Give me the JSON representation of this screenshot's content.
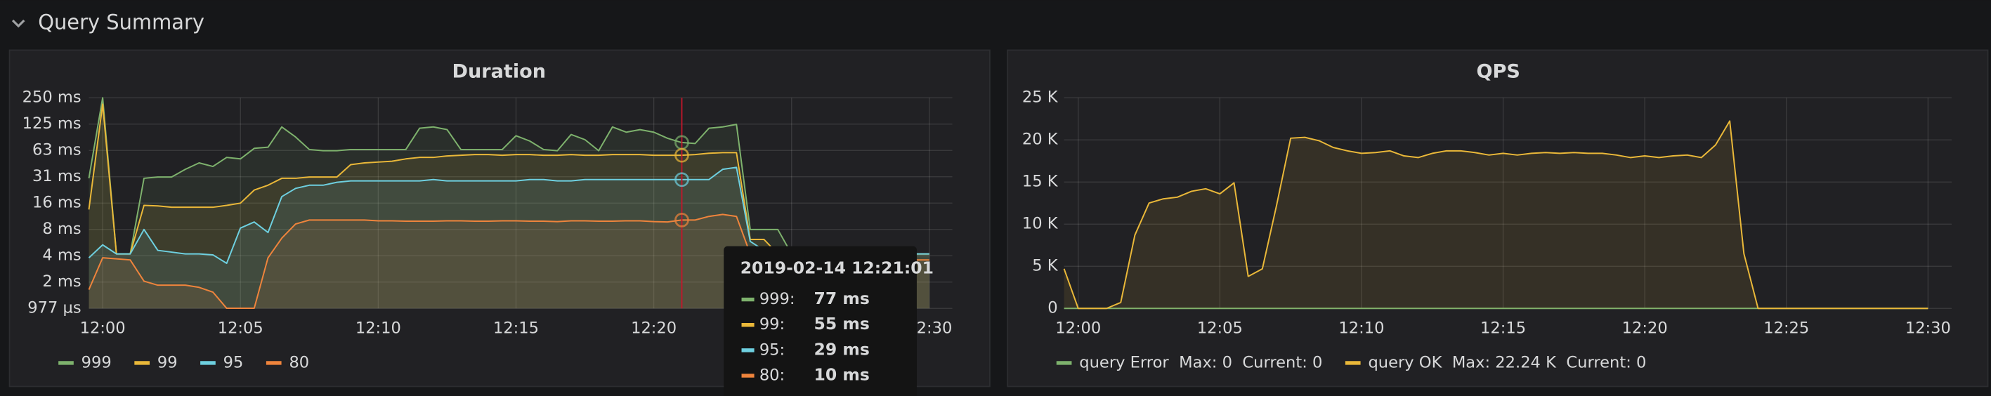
{
  "row": {
    "title": "Query Summary"
  },
  "chart_data": [
    {
      "type": "line",
      "title": "Duration",
      "log_scale": true,
      "grid": true,
      "fill": true,
      "x": [
        "11:59:30",
        "12:00:00",
        "12:00:30",
        "12:01:00",
        "12:01:30",
        "12:02:00",
        "12:02:30",
        "12:03:00",
        "12:03:30",
        "12:04:00",
        "12:04:30",
        "12:05:00",
        "12:05:30",
        "12:06:00",
        "12:06:30",
        "12:07:00",
        "12:07:30",
        "12:08:00",
        "12:08:30",
        "12:09:00",
        "12:09:30",
        "12:10:00",
        "12:10:30",
        "12:11:00",
        "12:11:30",
        "12:12:00",
        "12:12:30",
        "12:13:00",
        "12:13:30",
        "12:14:00",
        "12:14:30",
        "12:15:00",
        "12:15:30",
        "12:16:00",
        "12:16:30",
        "12:17:00",
        "12:17:30",
        "12:18:00",
        "12:18:30",
        "12:19:00",
        "12:19:30",
        "12:20:00",
        "12:20:30",
        "12:21:00",
        "12:21:30",
        "12:22:00",
        "12:22:30",
        "12:23:00",
        "12:23:30",
        "12:24:00",
        "12:24:30",
        "12:25:00",
        "12:25:30",
        "12:26:00",
        "12:26:30",
        "12:27:00",
        "12:27:30",
        "12:28:00",
        "12:28:30",
        "12:29:00",
        "12:29:30",
        "12:30:00"
      ],
      "xlim": [
        "11:59:30",
        "12:30:50"
      ],
      "xticks": [
        "12:00",
        "12:05",
        "12:10",
        "12:15",
        "12:20",
        "12:25",
        "12:30"
      ],
      "ylim": [
        0.9765625,
        250
      ],
      "yticks": [
        {
          "value": 250,
          "label": "250 ms"
        },
        {
          "value": 125,
          "label": "125 ms"
        },
        {
          "value": 62.5,
          "label": "63 ms"
        },
        {
          "value": 31.25,
          "label": "31 ms"
        },
        {
          "value": 15.625,
          "label": "16 ms"
        },
        {
          "value": 7.8125,
          "label": "8 ms"
        },
        {
          "value": 3.90625,
          "label": "4 ms"
        },
        {
          "value": 1.953125,
          "label": "2 ms"
        },
        {
          "value": 0.9765625,
          "label": "977 µs"
        }
      ],
      "series": [
        {
          "name": "999",
          "color": "#7eb26d",
          "values": [
            30,
            250,
            4.1,
            4.1,
            30,
            31,
            31,
            38,
            45,
            41,
            52,
            50,
            66,
            68,
            116,
            89,
            64,
            62,
            62,
            64,
            64,
            64,
            64,
            64,
            112,
            116,
            108,
            64,
            64,
            64,
            64,
            92,
            80,
            64,
            62,
            95,
            83,
            62,
            116,
            101,
            108,
            101,
            86,
            77,
            75,
            112,
            116,
            124,
            7.8,
            7.8,
            7.8,
            4.1,
            4.1,
            4.1,
            4.1,
            4.1,
            4.1,
            4.1,
            4.1,
            4.1,
            4.1,
            4.1
          ]
        },
        {
          "name": "99",
          "color": "#eab839",
          "values": [
            13.2,
            211,
            4.1,
            4.1,
            14.7,
            14.5,
            14,
            14,
            14,
            14,
            14.7,
            15.6,
            22,
            25,
            30,
            30,
            31,
            31,
            31,
            43,
            45,
            46,
            47,
            50,
            52,
            52,
            54,
            55,
            56,
            56,
            55,
            56,
            56,
            55,
            55,
            56,
            55,
            55,
            56,
            56,
            56,
            55,
            55,
            55,
            56,
            58,
            59,
            59,
            6,
            6,
            4.1,
            4.1,
            4.1,
            4.1,
            4.1,
            4.1,
            4.1,
            4.1,
            4.1,
            4.1,
            4.1,
            4.1
          ]
        },
        {
          "name": "95",
          "color": "#6ed0e0",
          "values": [
            3.7,
            5.2,
            4.1,
            4.1,
            7.8,
            4.5,
            4.3,
            4.1,
            4.1,
            4.0,
            3.2,
            8.1,
            9.5,
            7.2,
            18.5,
            23,
            25,
            25,
            27,
            28,
            28,
            28,
            28,
            28,
            28,
            29,
            28,
            28,
            28,
            28,
            28,
            28,
            29,
            29,
            28,
            28,
            29,
            29,
            29,
            29,
            29,
            29,
            29,
            29,
            29,
            29,
            38,
            40,
            5.7,
            4.5,
            4.1,
            4.1,
            4.1,
            4.1,
            4.1,
            4.1,
            4.1,
            4.1,
            4.1,
            4.1,
            4.1,
            4.1
          ]
        },
        {
          "name": "80",
          "color": "#ef843c",
          "values": [
            1.6,
            3.7,
            3.6,
            3.5,
            2.0,
            1.8,
            1.8,
            1.8,
            1.7,
            1.5,
            0.98,
            0.98,
            0.98,
            3.7,
            6.2,
            9,
            10,
            10,
            10,
            10,
            10,
            9.8,
            9.8,
            9.7,
            9.7,
            9.7,
            9.8,
            9.8,
            9.7,
            9.7,
            9.8,
            9.8,
            9.7,
            9.7,
            9.6,
            9.8,
            9.8,
            9.7,
            9.7,
            9.8,
            9.8,
            9.6,
            9.5,
            10,
            10,
            11,
            11.6,
            11,
            4.1,
            3.5,
            3.5,
            3.5,
            3.5,
            3.5,
            3.5,
            3.5,
            3.5,
            3.5,
            3.5,
            3.5,
            3.5,
            3.5
          ]
        }
      ]
    },
    {
      "type": "line",
      "title": "QPS",
      "log_scale": false,
      "grid": true,
      "fill": true,
      "x": [
        "11:59:30",
        "12:00:00",
        "12:00:30",
        "12:01:00",
        "12:01:30",
        "12:02:00",
        "12:02:30",
        "12:03:00",
        "12:03:30",
        "12:04:00",
        "12:04:30",
        "12:05:00",
        "12:05:30",
        "12:06:00",
        "12:06:30",
        "12:07:00",
        "12:07:30",
        "12:08:00",
        "12:08:30",
        "12:09:00",
        "12:09:30",
        "12:10:00",
        "12:10:30",
        "12:11:00",
        "12:11:30",
        "12:12:00",
        "12:12:30",
        "12:13:00",
        "12:13:30",
        "12:14:00",
        "12:14:30",
        "12:15:00",
        "12:15:30",
        "12:16:00",
        "12:16:30",
        "12:17:00",
        "12:17:30",
        "12:18:00",
        "12:18:30",
        "12:19:00",
        "12:19:30",
        "12:20:00",
        "12:20:30",
        "12:21:00",
        "12:21:30",
        "12:22:00",
        "12:22:30",
        "12:23:00",
        "12:23:30",
        "12:24:00",
        "12:24:30",
        "12:25:00",
        "12:25:30",
        "12:26:00",
        "12:26:30",
        "12:27:00",
        "12:27:30",
        "12:28:00",
        "12:28:30",
        "12:29:00",
        "12:29:30",
        "12:30:00"
      ],
      "xlim": [
        "11:59:30",
        "12:30:50"
      ],
      "xticks": [
        "12:00",
        "12:05",
        "12:10",
        "12:15",
        "12:20",
        "12:25",
        "12:30"
      ],
      "ylim": [
        0,
        25000
      ],
      "yticks": [
        0,
        {
          "value": 5000,
          "label": "5 K"
        },
        {
          "value": 10000,
          "label": "10 K"
        },
        {
          "value": 15000,
          "label": "15 K"
        },
        {
          "value": 20000,
          "label": "20 K"
        },
        {
          "value": 25000,
          "label": "25 K"
        }
      ],
      "series": [
        {
          "name": "query Error",
          "color": "#7eb26d",
          "legend_stats": [
            "Max: 0",
            "Current: 0"
          ],
          "values": [
            0,
            0,
            0,
            0,
            0,
            0,
            0,
            0,
            0,
            0,
            0,
            0,
            0,
            0,
            0,
            0,
            0,
            0,
            0,
            0,
            0,
            0,
            0,
            0,
            0,
            0,
            0,
            0,
            0,
            0,
            0,
            0,
            0,
            0,
            0,
            0,
            0,
            0,
            0,
            0,
            0,
            0,
            0,
            0,
            0,
            0,
            0,
            0,
            0,
            0,
            0,
            0,
            0,
            0,
            0,
            0,
            0,
            0,
            0,
            0,
            0,
            0
          ]
        },
        {
          "name": "query OK",
          "color": "#eab839",
          "legend_stats": [
            "Max: 22.24 K",
            "Current: 0"
          ],
          "values": [
            4700,
            0,
            0,
            0,
            700,
            8700,
            12500,
            13000,
            13200,
            13900,
            14200,
            13600,
            14900,
            3800,
            4700,
            12200,
            20200,
            20300,
            19900,
            19100,
            18700,
            18400,
            18500,
            18700,
            18100,
            17900,
            18400,
            18700,
            18700,
            18500,
            18200,
            18400,
            18200,
            18400,
            18500,
            18400,
            18500,
            18400,
            18400,
            18200,
            17900,
            18100,
            17900,
            18100,
            18200,
            17900,
            19400,
            22240,
            6500,
            0,
            0,
            0,
            0,
            0,
            0,
            0,
            0,
            0,
            0,
            0,
            0,
            0
          ]
        }
      ]
    }
  ],
  "tooltip": {
    "time": "2019-02-14 12:21:01",
    "rows": [
      {
        "name": "999:",
        "value": "77 ms"
      },
      {
        "name": "99:",
        "value": "55 ms"
      },
      {
        "name": "95:",
        "value": "29 ms"
      },
      {
        "name": "80:",
        "value": "10 ms"
      }
    ]
  }
}
